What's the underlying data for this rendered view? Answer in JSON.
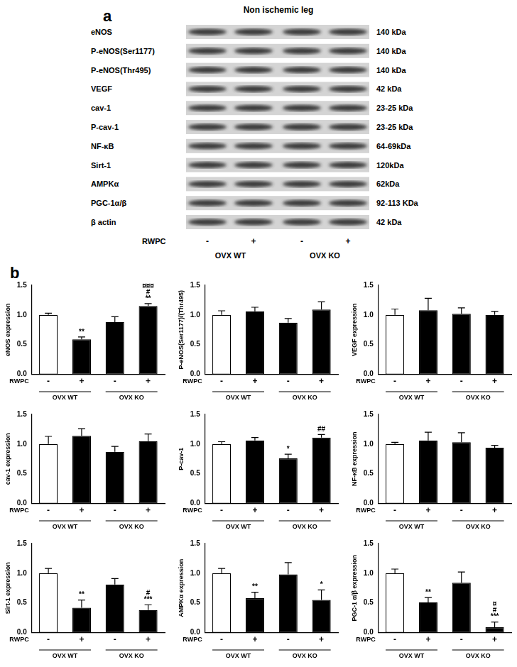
{
  "panel_a": {
    "label": "a",
    "title": "Non ischemic leg",
    "rows": [
      {
        "name": "eNOS",
        "size": "140 kDa"
      },
      {
        "name": "P-eNOS(Ser1177)",
        "size": "140 kDa"
      },
      {
        "name": "P-eNOS(Thr495)",
        "size": "140 kDa"
      },
      {
        "name": "VEGF",
        "size": "42 kDa"
      },
      {
        "name": "cav-1",
        "size": "23-25 kDa"
      },
      {
        "name": "P-cav-1",
        "size": "23-25 kDa"
      },
      {
        "name": "NF-κB",
        "size": "64-69kDa"
      },
      {
        "name": "Sirt-1",
        "size": "120kDa"
      },
      {
        "name": "AMPKα",
        "size": "62kDa"
      },
      {
        "name": "PGC-1α/β",
        "size": "92-113 KDa"
      },
      {
        "name": "β actin",
        "size": "42 kDa"
      }
    ],
    "lane_label": "RWPC",
    "lanes": [
      "-",
      "+",
      "-",
      "+"
    ],
    "groups": [
      "OVX  WT",
      "OVX KO"
    ]
  },
  "panel_b_label": "b",
  "chart_data": [
    {
      "type": "bar",
      "y_label": "eNOS expression",
      "x_label": "RWPC",
      "categories": [
        "-",
        "+",
        "-",
        "+"
      ],
      "groups": [
        "OVX WT",
        "OVX KO"
      ],
      "values": [
        1.0,
        0.59,
        0.88,
        1.15
      ],
      "errors": [
        0.03,
        0.04,
        0.09,
        0.04
      ],
      "marks": [
        [],
        [
          "**"
        ],
        [],
        [
          "¤¤¤",
          "#",
          "**"
        ]
      ],
      "colors": [
        "#ffffff",
        "#000000",
        "#000000",
        "#000000"
      ],
      "ylim": [
        0,
        1.5
      ],
      "yticks": [
        {
          "value": 0,
          "label": "0.0"
        },
        0.5,
        {
          "value": 1,
          "label": "1.0"
        },
        1.5
      ],
      "grid": false
    },
    {
      "type": "bar",
      "y_label": "P-eNOS(Ser1177)/(Thr495)",
      "x_label": "RWPC",
      "categories": [
        "-",
        "+",
        "-",
        "+"
      ],
      "groups": [
        "OVX WT",
        "OVX KO"
      ],
      "values": [
        1.0,
        1.06,
        0.87,
        1.09
      ],
      "errors": [
        0.07,
        0.07,
        0.07,
        0.13
      ],
      "marks": [
        [],
        [],
        [],
        []
      ],
      "colors": [
        "#ffffff",
        "#000000",
        "#000000",
        "#000000"
      ],
      "ylim": [
        0,
        1.5
      ],
      "yticks": [
        {
          "value": 0,
          "label": "0.0"
        },
        0.5,
        {
          "value": 1,
          "label": "1.0"
        },
        1.5
      ],
      "grid": false
    },
    {
      "type": "bar",
      "y_label": "VEGF expression",
      "x_label": "RWPC",
      "categories": [
        "-",
        "+",
        "-",
        "+"
      ],
      "groups": [
        "OVX WT",
        "OVX KO"
      ],
      "values": [
        1.0,
        1.08,
        1.02,
        1.0
      ],
      "errors": [
        0.1,
        0.2,
        0.1,
        0.06
      ],
      "marks": [
        [],
        [],
        [],
        []
      ],
      "colors": [
        "#ffffff",
        "#000000",
        "#000000",
        "#000000"
      ],
      "ylim": [
        0,
        1.5
      ],
      "yticks": [
        {
          "value": 0,
          "label": "0.0"
        },
        0.5,
        {
          "value": 1,
          "label": "1.0"
        },
        1.5
      ],
      "grid": false
    },
    {
      "type": "bar",
      "y_label": "cav-1 expression",
      "x_label": "RWPC",
      "categories": [
        "-",
        "+",
        "-",
        "+"
      ],
      "groups": [
        "OVX WT",
        "OVX KO"
      ],
      "values": [
        1.0,
        1.14,
        0.87,
        1.05
      ],
      "errors": [
        0.13,
        0.12,
        0.09,
        0.12
      ],
      "marks": [
        [],
        [],
        [],
        []
      ],
      "colors": [
        "#ffffff",
        "#000000",
        "#000000",
        "#000000"
      ],
      "ylim": [
        0,
        1.5
      ],
      "yticks": [
        {
          "value": 0,
          "label": "0.0"
        },
        0.5,
        {
          "value": 1,
          "label": "1.0"
        },
        1.5
      ],
      "grid": false
    },
    {
      "type": "bar",
      "y_label": "P-cav-1",
      "x_label": "RWPC",
      "categories": [
        "-",
        "+",
        "-",
        "+"
      ],
      "groups": [
        "OVX WT",
        "OVX KO"
      ],
      "values": [
        1.0,
        1.06,
        0.76,
        1.11
      ],
      "errors": [
        0.04,
        0.05,
        0.07,
        0.05
      ],
      "marks": [
        [],
        [],
        [
          "*"
        ],
        [
          "##"
        ]
      ],
      "colors": [
        "#ffffff",
        "#000000",
        "#000000",
        "#000000"
      ],
      "ylim": [
        0,
        1.5
      ],
      "yticks": [
        {
          "value": 0,
          "label": "0.0"
        },
        0.5,
        {
          "value": 1,
          "label": "1.0"
        },
        1.5
      ],
      "grid": false
    },
    {
      "type": "bar",
      "y_label": "NF-κB expression",
      "x_label": "RWPC",
      "categories": [
        "-",
        "+",
        "-",
        "+"
      ],
      "groups": [
        "OVX WT",
        "OVX KO"
      ],
      "values": [
        1.0,
        1.06,
        1.03,
        0.94
      ],
      "errors": [
        0.03,
        0.14,
        0.16,
        0.04
      ],
      "marks": [
        [],
        [],
        [],
        []
      ],
      "colors": [
        "#ffffff",
        "#000000",
        "#000000",
        "#000000"
      ],
      "ylim": [
        0,
        1.5
      ],
      "yticks": [
        {
          "value": 0,
          "label": "0.0"
        },
        0.5,
        {
          "value": 1,
          "label": "1.0"
        },
        1.5
      ],
      "grid": false
    },
    {
      "type": "bar",
      "y_label": "Sirt-1 expression",
      "x_label": "RWPC",
      "categories": [
        "-",
        "+",
        "-",
        "+"
      ],
      "groups": [
        "OVX WT",
        "OVX KO"
      ],
      "values": [
        1.0,
        0.42,
        0.81,
        0.38
      ],
      "errors": [
        0.08,
        0.13,
        0.1,
        0.09
      ],
      "marks": [
        [],
        [
          "**"
        ],
        [],
        [
          "#",
          "***"
        ]
      ],
      "colors": [
        "#ffffff",
        "#000000",
        "#000000",
        "#000000"
      ],
      "ylim": [
        0,
        1.5
      ],
      "yticks": [
        {
          "value": 0,
          "label": "0.0"
        },
        0.5,
        {
          "value": 1,
          "label": "1.0"
        },
        1.5
      ],
      "grid": false
    },
    {
      "type": "bar",
      "y_label": "AMPKα expression",
      "x_label": "RWPC",
      "categories": [
        "-",
        "+",
        "-",
        "+"
      ],
      "groups": [
        "OVX WT",
        "OVX KO"
      ],
      "values": [
        1.0,
        0.58,
        0.98,
        0.55
      ],
      "errors": [
        0.08,
        0.1,
        0.2,
        0.17
      ],
      "marks": [
        [],
        [
          "**"
        ],
        [],
        [
          "*"
        ]
      ],
      "colors": [
        "#ffffff",
        "#000000",
        "#000000",
        "#000000"
      ],
      "ylim": [
        0,
        1.5
      ],
      "yticks": [
        {
          "value": 0,
          "label": "0.0"
        },
        0.5,
        {
          "value": 1,
          "label": "1.0"
        },
        1.5
      ],
      "grid": false
    },
    {
      "type": "bar",
      "y_label": "PGC-1 α/β expression",
      "x_label": "RWPC",
      "categories": [
        "-",
        "+",
        "-",
        "+"
      ],
      "groups": [
        "OVX WT",
        "OVX KO"
      ],
      "values": [
        1.0,
        0.51,
        0.84,
        0.09
      ],
      "errors": [
        0.07,
        0.08,
        0.18,
        0.09
      ],
      "marks": [
        [],
        [
          "**"
        ],
        [],
        [
          "¤",
          "#",
          "***"
        ]
      ],
      "colors": [
        "#ffffff",
        "#000000",
        "#000000",
        "#000000"
      ],
      "ylim": [
        0,
        1.5
      ],
      "yticks": [
        {
          "value": 0,
          "label": "0.0"
        },
        0.5,
        {
          "value": 1,
          "label": "1.0"
        },
        1.5
      ],
      "grid": false
    }
  ]
}
